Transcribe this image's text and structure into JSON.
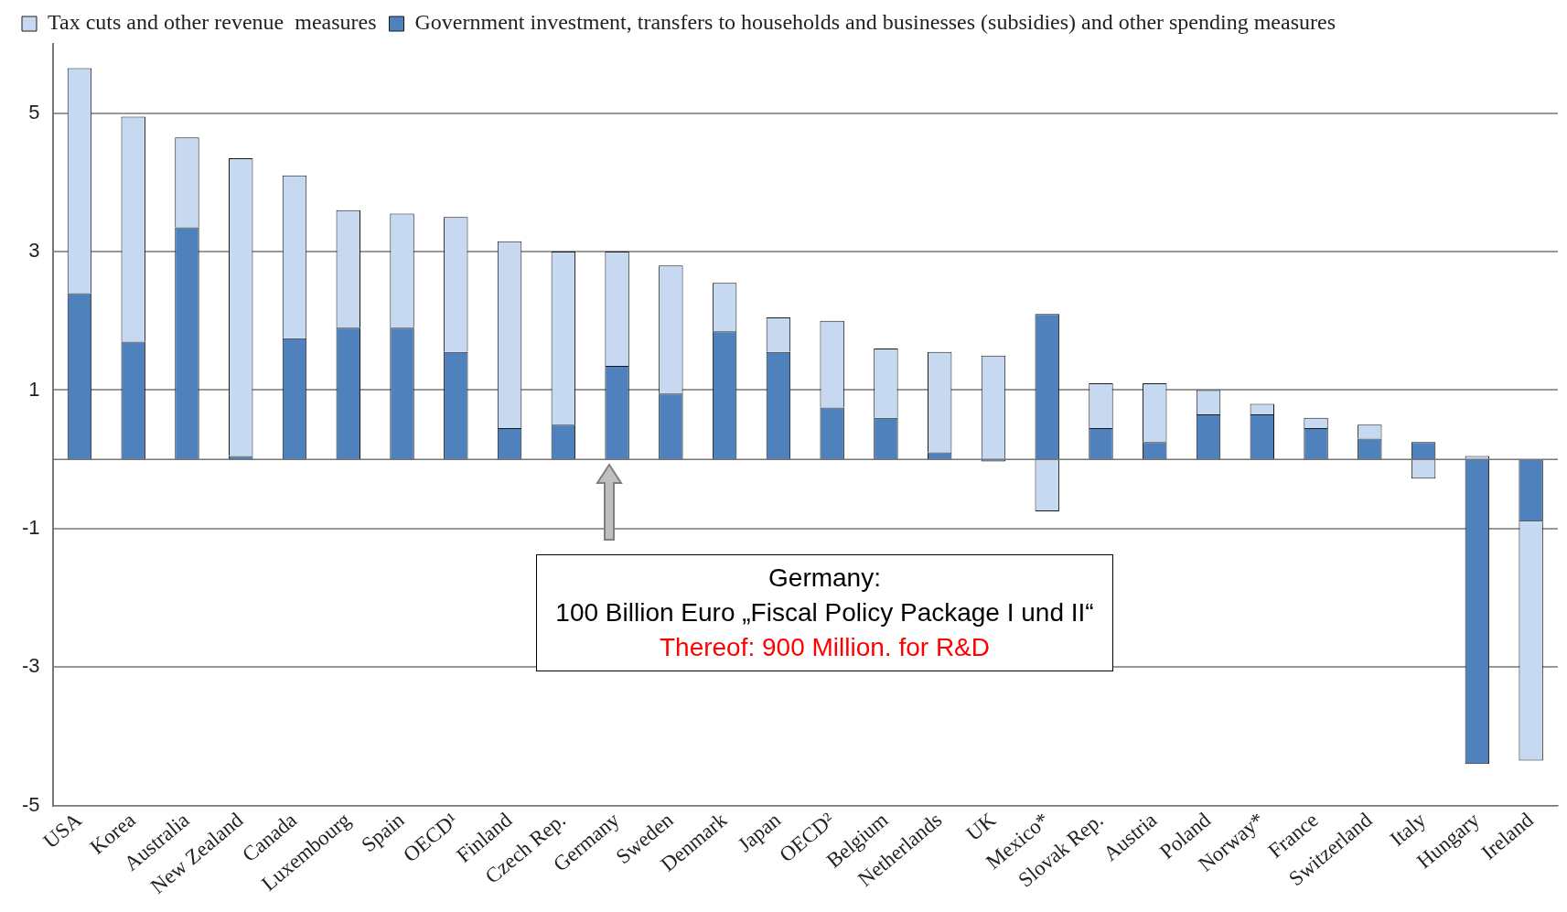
{
  "chart_data": {
    "type": "bar",
    "stacked": true,
    "categories": [
      "USA",
      "Korea",
      "Australia",
      "New Zealand",
      "Canada",
      "Luxembourg",
      "Spain",
      "OECD¹",
      "Finland",
      "Czech Rep.",
      "Germany",
      "Sweden",
      "Denmark",
      "Japan",
      "OECD²",
      "Belgium",
      "Netherlands",
      "UK",
      "Mexico*",
      "Slovak Rep.",
      "Austria",
      "Poland",
      "Norway*",
      "France",
      "Switzerland",
      "Italy",
      "Hungary",
      "Ireland"
    ],
    "series": [
      {
        "name": "Government investment, transfers to households and businesses (subsidies) and other spending measures",
        "color": "#4f81bd",
        "values": [
          2.4,
          1.7,
          3.35,
          0.05,
          1.75,
          1.9,
          1.9,
          1.55,
          0.45,
          0.5,
          1.35,
          0.95,
          1.85,
          1.55,
          0.75,
          0.6,
          0.1,
          -0.03,
          2.1,
          0.45,
          0.25,
          0.65,
          0.65,
          0.45,
          0.3,
          0.25,
          -4.4,
          -0.9
        ]
      },
      {
        "name": "Tax cuts and other revenue  measures",
        "color": "#c6d9f1",
        "values": [
          3.25,
          3.25,
          1.3,
          4.3,
          2.35,
          1.7,
          1.65,
          1.95,
          2.7,
          2.5,
          1.65,
          1.85,
          0.7,
          0.5,
          1.25,
          1.0,
          1.45,
          1.5,
          -0.75,
          0.65,
          0.85,
          0.35,
          0.15,
          0.15,
          0.2,
          -0.28,
          0.05,
          -3.45
        ]
      }
    ],
    "ylim": [
      -5,
      6
    ],
    "yticks": [
      -5,
      -3,
      -1,
      1,
      3,
      5
    ],
    "grid": "y",
    "legend": "top left",
    "annotations": [
      "Germany:\n100 Billion Euro „Fiscal Policy Package I und II“\nThereof: 900 Million. for R&D"
    ]
  }
}
